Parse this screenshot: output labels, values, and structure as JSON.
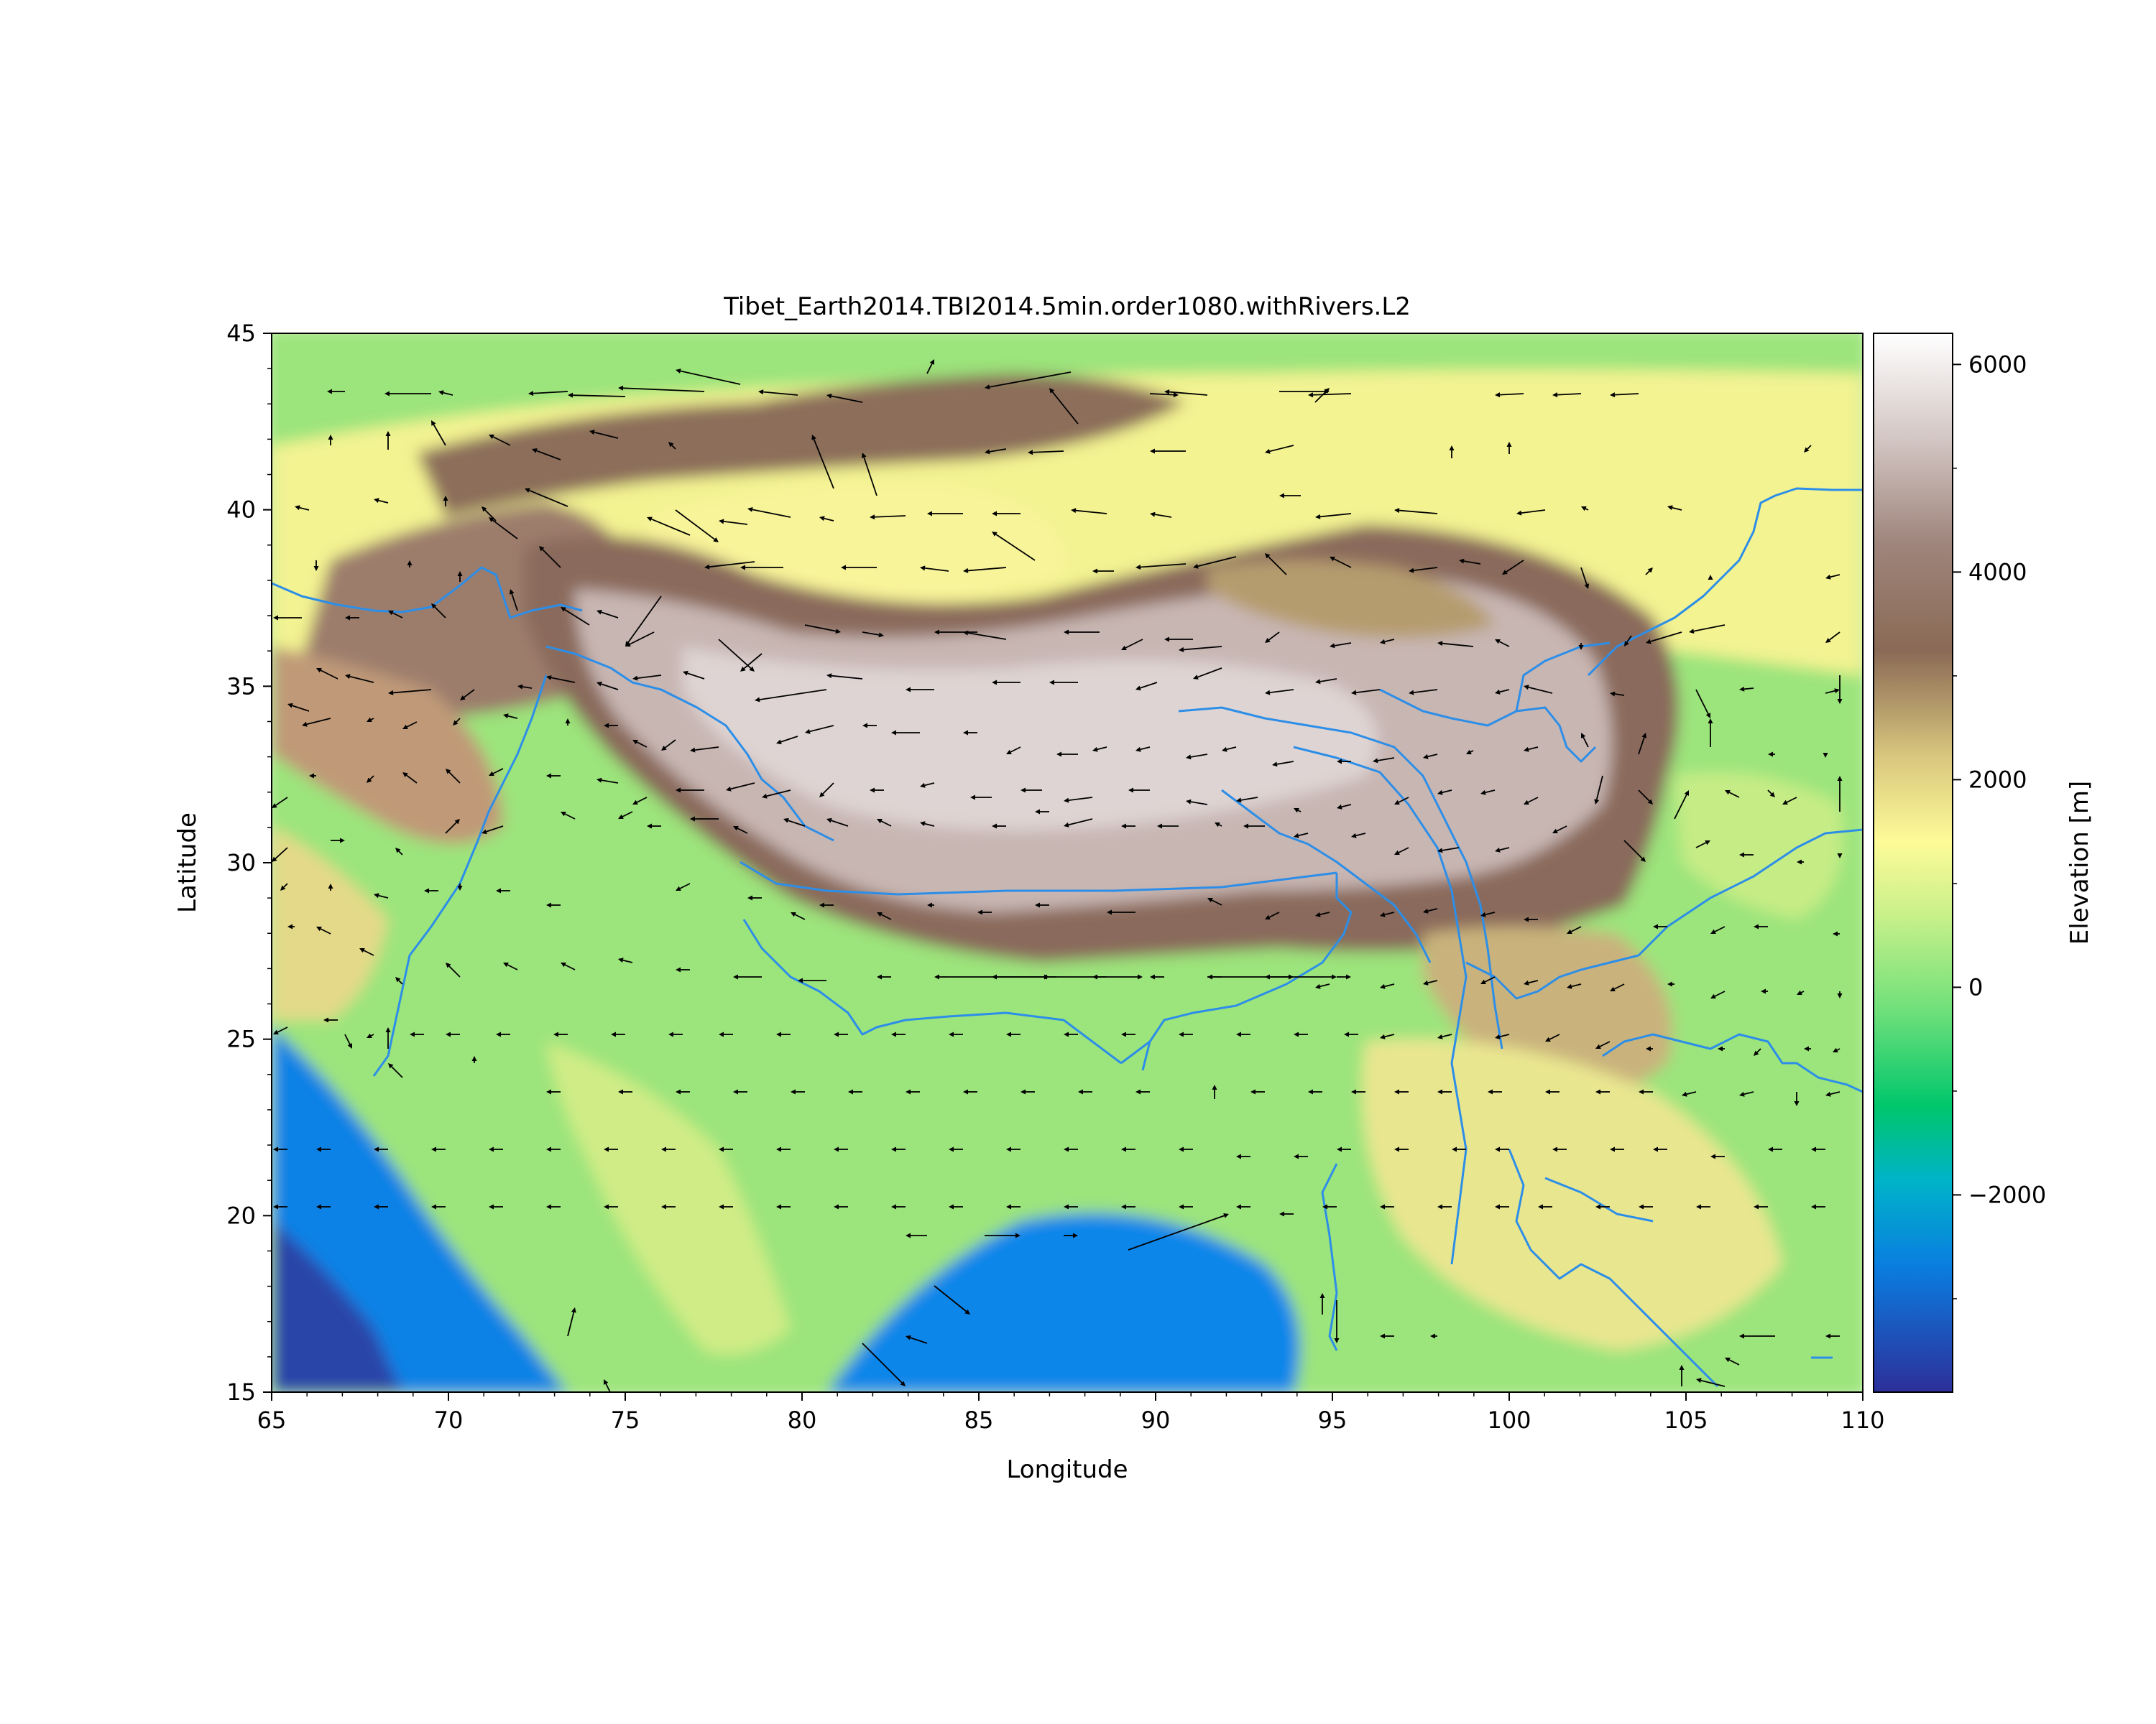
{
  "chart_data": {
    "type": "heatmap",
    "title": "Tibet_Earth2014.TBI2014.5min.order1080.withRivers.L2",
    "xlabel": "Longitude",
    "ylabel": "Latitude",
    "xlim": [
      65,
      110
    ],
    "ylim": [
      15,
      45
    ],
    "xticks": [
      65,
      70,
      75,
      80,
      85,
      90,
      95,
      100,
      105,
      110
    ],
    "yticks": [
      15,
      20,
      25,
      30,
      35,
      40,
      45
    ],
    "grid": false,
    "colorbar": {
      "label": "Elevation [m]",
      "range": [
        -3900,
        6300
      ],
      "ticks": [
        6000,
        4000,
        2000,
        0,
        -2000
      ],
      "tick_labels": [
        "6000",
        "4000",
        "2000",
        "0",
        "−2000"
      ],
      "colormap": "terrain",
      "colors": [
        "#333399",
        "#0094fa",
        "#00c66c",
        "#9fe87f",
        "#ffff99",
        "#80604f",
        "#c0a8a0",
        "#ffffff"
      ]
    },
    "layers": [
      "elevation",
      "rivers",
      "vector arrows"
    ],
    "colors": {
      "river": "#2d8ee8",
      "arrow": "#000000"
    }
  }
}
